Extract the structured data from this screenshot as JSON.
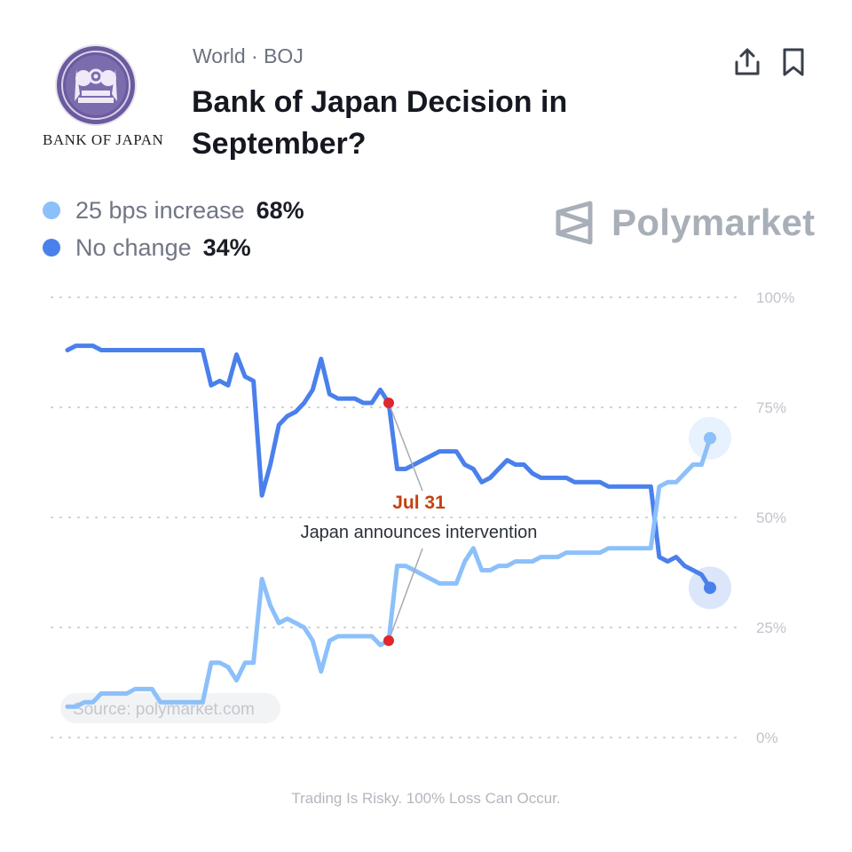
{
  "header": {
    "category": "World · BOJ",
    "title": "Bank of Japan Decision in September?",
    "logo_text": "BANK OF JAPAN"
  },
  "toolbar": {
    "share_icon": "share-icon",
    "bookmark_icon": "bookmark-icon"
  },
  "legend": [
    {
      "label": "25 bps increase",
      "value": "68%",
      "color": "#8cc0fa"
    },
    {
      "label": "No change",
      "value": "34%",
      "color": "#4a80ec"
    }
  ],
  "brand": {
    "name": "Polymarket"
  },
  "source_label": "Source: polymarket.com",
  "disclaimer": "Trading Is Risky. 100% Loss Can Occur.",
  "chart_data": {
    "type": "line",
    "ylim": [
      0,
      100
    ],
    "yticks": [
      "100%",
      "75%",
      "50%",
      "25%",
      "0%"
    ],
    "grid": true,
    "series": [
      {
        "name": "No change",
        "color": "#4a80ec",
        "values": [
          88,
          89,
          89,
          89,
          88,
          88,
          88,
          88,
          88,
          88,
          88,
          88,
          88,
          88,
          88,
          88,
          88,
          80,
          81,
          80,
          87,
          82,
          81,
          55,
          62,
          71,
          73,
          74,
          76,
          79,
          86,
          78,
          77,
          77,
          77,
          76,
          76,
          79,
          76,
          61,
          61,
          62,
          63,
          64,
          65,
          65,
          65,
          62,
          61,
          58,
          59,
          61,
          63,
          62,
          62,
          60,
          59,
          59,
          59,
          59,
          58,
          58,
          58,
          58,
          57,
          57,
          57,
          57,
          57,
          57,
          41,
          40,
          41,
          39,
          38,
          37,
          34
        ]
      },
      {
        "name": "25 bps increase",
        "color": "#8cc0fa",
        "values": [
          7,
          7,
          8,
          8,
          10,
          10,
          10,
          10,
          11,
          11,
          11,
          8,
          8,
          8,
          8,
          8,
          8,
          17,
          17,
          16,
          13,
          17,
          17,
          36,
          30,
          26,
          27,
          26,
          25,
          22,
          15,
          22,
          23,
          23,
          23,
          23,
          23,
          21,
          22,
          39,
          39,
          38,
          37,
          36,
          35,
          35,
          35,
          40,
          43,
          38,
          38,
          39,
          39,
          40,
          40,
          40,
          41,
          41,
          41,
          42,
          42,
          42,
          42,
          42,
          43,
          43,
          43,
          43,
          43,
          43,
          57,
          58,
          58,
          60,
          62,
          62,
          68
        ]
      }
    ],
    "annotation": {
      "date": "Jul 31",
      "text": "Japan announces intervention",
      "index": 38
    }
  }
}
